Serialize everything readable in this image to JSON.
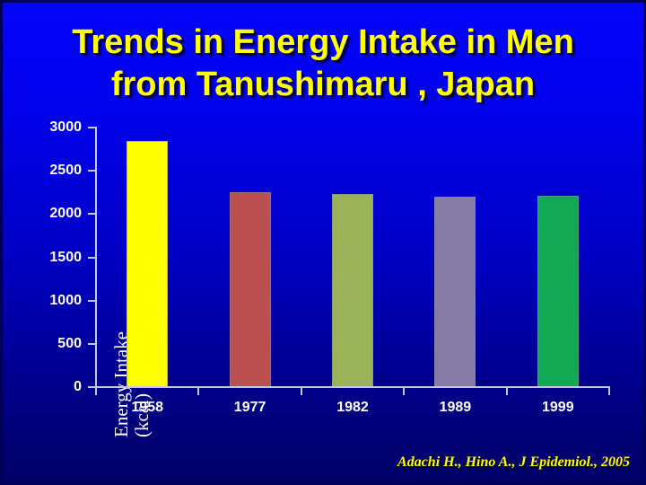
{
  "slide": {
    "title_line1": "Trends in Energy Intake in Men",
    "title_line2": "from Tanushimaru , Japan",
    "title_color": "#ffff00",
    "background_top": "#0404fc",
    "background_bottom": "#000066"
  },
  "chart_data": {
    "type": "bar",
    "title": "Trends in Energy Intake in Men from Tanushimaru , Japan",
    "categories": [
      "1958",
      "1977",
      "1982",
      "1989",
      "1999"
    ],
    "values": [
      2840,
      2250,
      2230,
      2200,
      2210
    ],
    "bar_colors": [
      "#ffff00",
      "#bc4f4f",
      "#9ab258",
      "#867ba4",
      "#12a854"
    ],
    "xlabel": "",
    "ylabel": "Energy Intake (kcal)",
    "ylabel_line1": "Energy Intake",
    "ylabel_line2": "(kcal)",
    "ylim": [
      0,
      3000
    ],
    "yticks": [
      0,
      500,
      1000,
      1500,
      2000,
      2500,
      3000
    ],
    "grid": false,
    "legend": false,
    "axis_color": "#c8c8dc",
    "tick_label_color": "#ffffff"
  },
  "citation": {
    "text": "Adachi H., Hino A., J Epidemiol., 2005",
    "color": "#ffff00"
  }
}
